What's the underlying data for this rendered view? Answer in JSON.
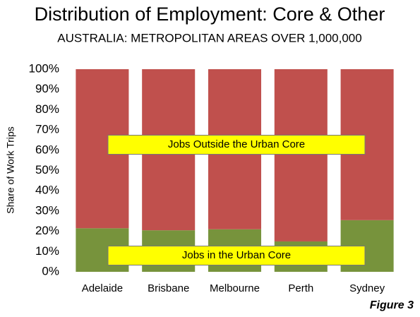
{
  "chart_data": {
    "type": "stacked_bar",
    "title": "Distribution of Employment: Core & Other",
    "subtitle": "AUSTRALIA: METROPOLITAN AREAS OVER 1,000,000",
    "y_label": "Share of Work Trips",
    "figure_label": "Figure 3",
    "categories": [
      "Adelaide",
      "Brisbane",
      "Melbourne",
      "Perth",
      "Sydney"
    ],
    "series": [
      {
        "name": "Jobs in the Urban Core",
        "color": "#77933c",
        "values": [
          21.5,
          20.5,
          21,
          15,
          25.5
        ]
      },
      {
        "name": "Jobs Outside the Urban Core",
        "color": "#c0504d",
        "values": [
          78.5,
          79.5,
          79,
          85,
          74.5
        ]
      }
    ],
    "ylim": [
      0,
      100
    ],
    "yticks": [
      {
        "value": 0,
        "label": "0%"
      },
      {
        "value": 10,
        "label": "10%"
      },
      {
        "value": 20,
        "label": "20%"
      },
      {
        "value": 30,
        "label": "30%"
      },
      {
        "value": 40,
        "label": "40%"
      },
      {
        "value": 50,
        "label": "50%"
      },
      {
        "value": 60,
        "label": "60%"
      },
      {
        "value": 70,
        "label": "70%"
      },
      {
        "value": 80,
        "label": "80%"
      },
      {
        "value": 90,
        "label": "90%"
      },
      {
        "value": 100,
        "label": "100%"
      }
    ],
    "grid": false
  }
}
